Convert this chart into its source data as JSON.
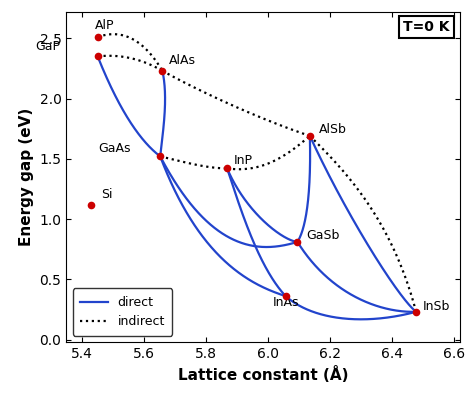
{
  "semiconductors": {
    "AlP": {
      "a": 5.451,
      "Eg": 2.51
    },
    "GaP": {
      "a": 5.451,
      "Eg": 2.35
    },
    "Si": {
      "a": 5.431,
      "Eg": 1.12
    },
    "AlAs": {
      "a": 5.66,
      "Eg": 2.23
    },
    "GaAs": {
      "a": 5.653,
      "Eg": 1.52
    },
    "InP": {
      "a": 5.869,
      "Eg": 1.42
    },
    "AlSb": {
      "a": 6.136,
      "Eg": 1.69
    },
    "GaSb": {
      "a": 6.096,
      "Eg": 0.81
    },
    "InAs": {
      "a": 6.058,
      "Eg": 0.36
    },
    "InSb": {
      "a": 6.479,
      "Eg": 0.23
    }
  },
  "line_color": "#2244cc",
  "dot_color": "#cc0000",
  "xlim": [
    5.35,
    6.62
  ],
  "ylim": [
    -0.02,
    2.72
  ],
  "xlabel": "Lattice constant (Å)",
  "ylabel": "Energy gap (eV)",
  "annotation": "T=0 K",
  "xticks": [
    5.4,
    5.6,
    5.8,
    6.0,
    6.2,
    6.4,
    6.6
  ],
  "yticks": [
    0.0,
    0.5,
    1.0,
    1.5,
    2.0,
    2.5
  ]
}
